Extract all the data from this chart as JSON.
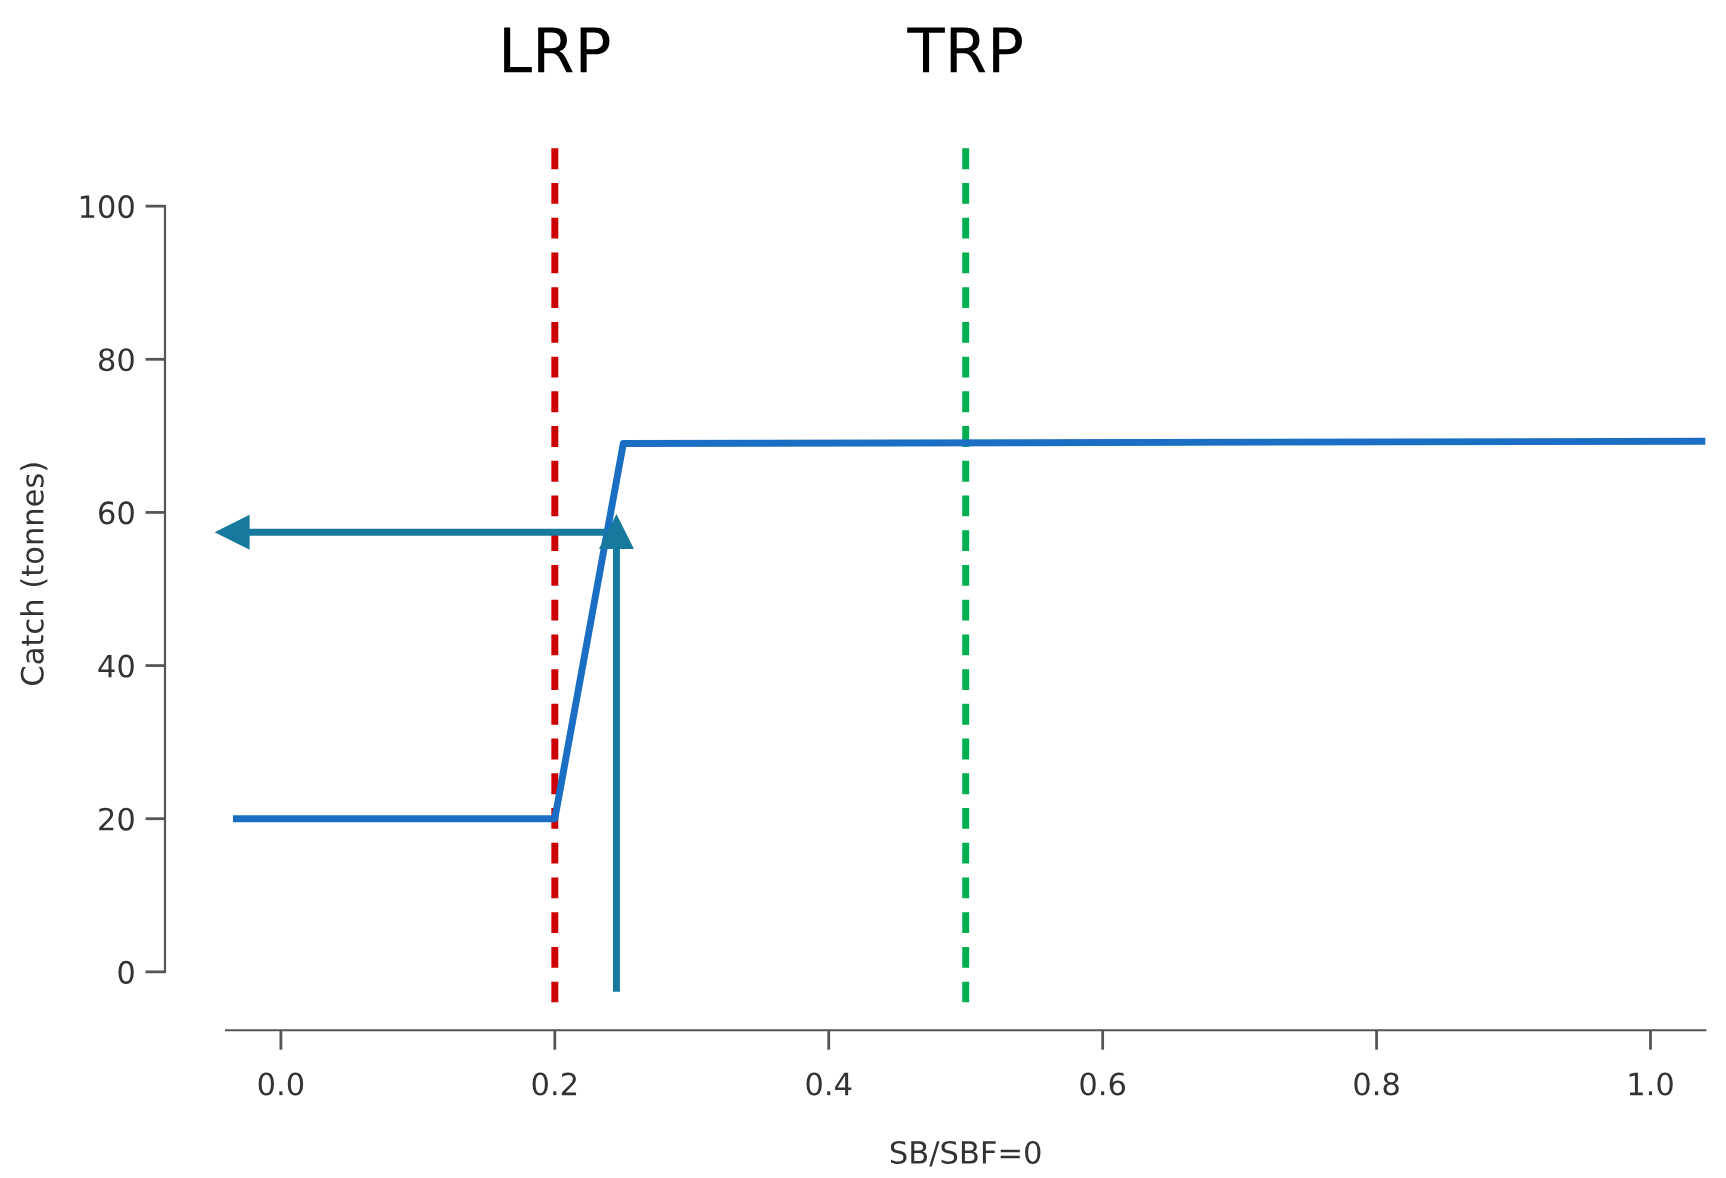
{
  "chart_data": {
    "type": "line",
    "xlabel": "SB/SBF=0",
    "ylabel": "Catch (tonnes)",
    "xlim": [
      -0.04,
      1.04
    ],
    "ylim": [
      -4,
      108
    ],
    "xticks": [
      {
        "value": 0,
        "label": "0.0"
      },
      {
        "value": 0.2,
        "label": "0.2"
      },
      {
        "value": 0.4,
        "label": "0.4"
      },
      {
        "value": 0.6,
        "label": "0.6"
      },
      {
        "value": 0.8,
        "label": "0.8"
      },
      {
        "value": 1,
        "label": "1.0"
      }
    ],
    "yticks": [
      0,
      20,
      40,
      60,
      80,
      100
    ],
    "grid": false,
    "legend": false,
    "series": [
      {
        "color": "#1a6fc4",
        "x": [
          -0.035,
          0.2,
          0.25,
          1.04
        ],
        "values": [
          20,
          20,
          69,
          69.3
        ],
        "marker": "none"
      },
      {
        "color": "#17799e",
        "x": [
          0.245,
          0.245
        ],
        "values": [
          -2.6,
          57.4
        ],
        "marker": "triangle"
      },
      {
        "color": "#17799e",
        "x": [
          0.237,
          -0.035
        ],
        "values": [
          57.4,
          57.4
        ],
        "marker": "triangle"
      }
    ],
    "ref_lines": [
      {
        "axis": "x",
        "value": 0.2,
        "label": "LRP",
        "color": "#cc0000",
        "line_style": "dashed"
      },
      {
        "axis": "x",
        "value": 0.5,
        "label": "TRP",
        "color": "#00b050",
        "line_style": "dashed"
      }
    ]
  }
}
